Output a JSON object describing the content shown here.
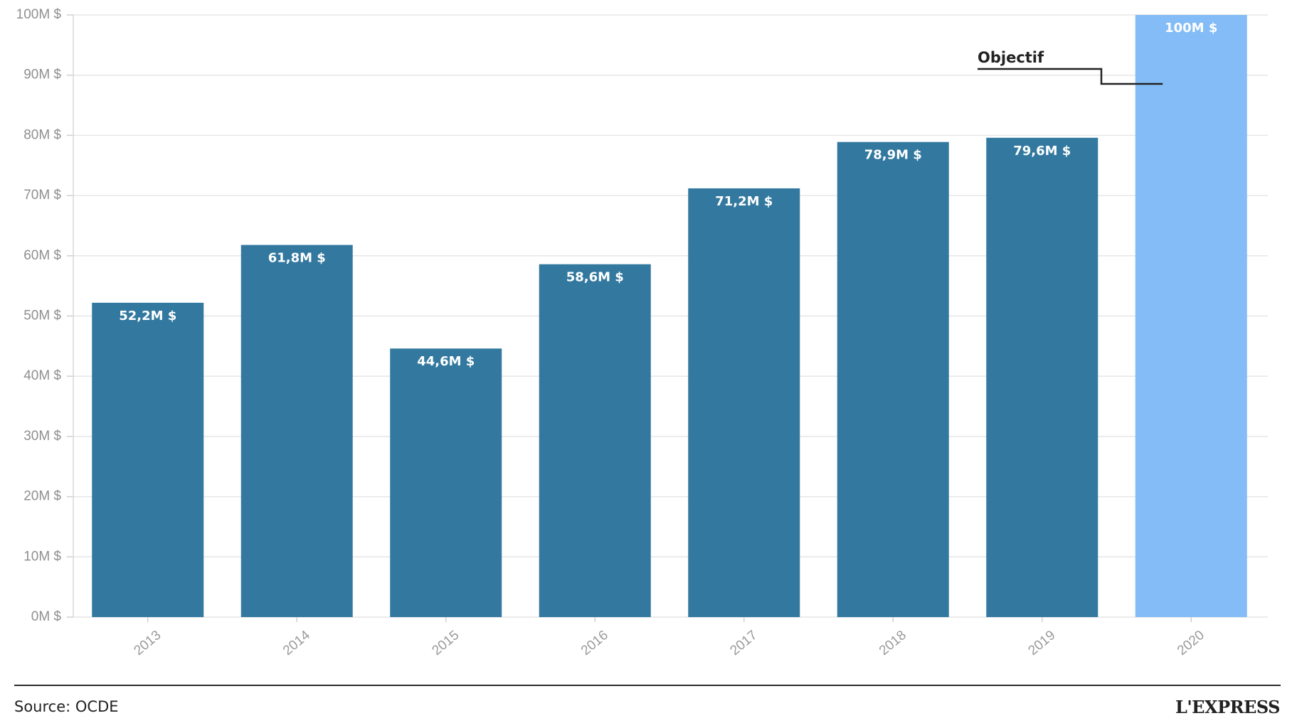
{
  "chart_data": {
    "type": "bar",
    "categories": [
      "2013",
      "2014",
      "2015",
      "2016",
      "2017",
      "2018",
      "2019",
      "2020"
    ],
    "values": [
      52.2,
      61.8,
      44.6,
      58.6,
      71.2,
      78.9,
      79.6,
      100
    ],
    "data_labels": [
      "52,2M $",
      "61,8M $",
      "44,6M $",
      "58,6M $",
      "71,2M $",
      "78,9M $",
      "79,6M $",
      "100M $"
    ],
    "y_ticks": [
      0,
      10,
      20,
      30,
      40,
      50,
      60,
      70,
      80,
      90,
      100
    ],
    "y_tick_labels": [
      "0M $",
      "10M $",
      "20M $",
      "30M $",
      "40M $",
      "50M $",
      "60M $",
      "70M $",
      "80M $",
      "90M $",
      "100M $"
    ],
    "ylim": [
      0,
      100
    ],
    "grid": true,
    "annotation": {
      "text": "Objectif",
      "category": "2020"
    },
    "highlight_category": "2020",
    "colors": {
      "bar": "#33799f",
      "highlight": "#83bcf6",
      "grid": "#e6e6e6",
      "annotation_line": "#222222"
    }
  },
  "footer": {
    "source": "Source: OCDE",
    "brand": "L'EXPRESS"
  }
}
